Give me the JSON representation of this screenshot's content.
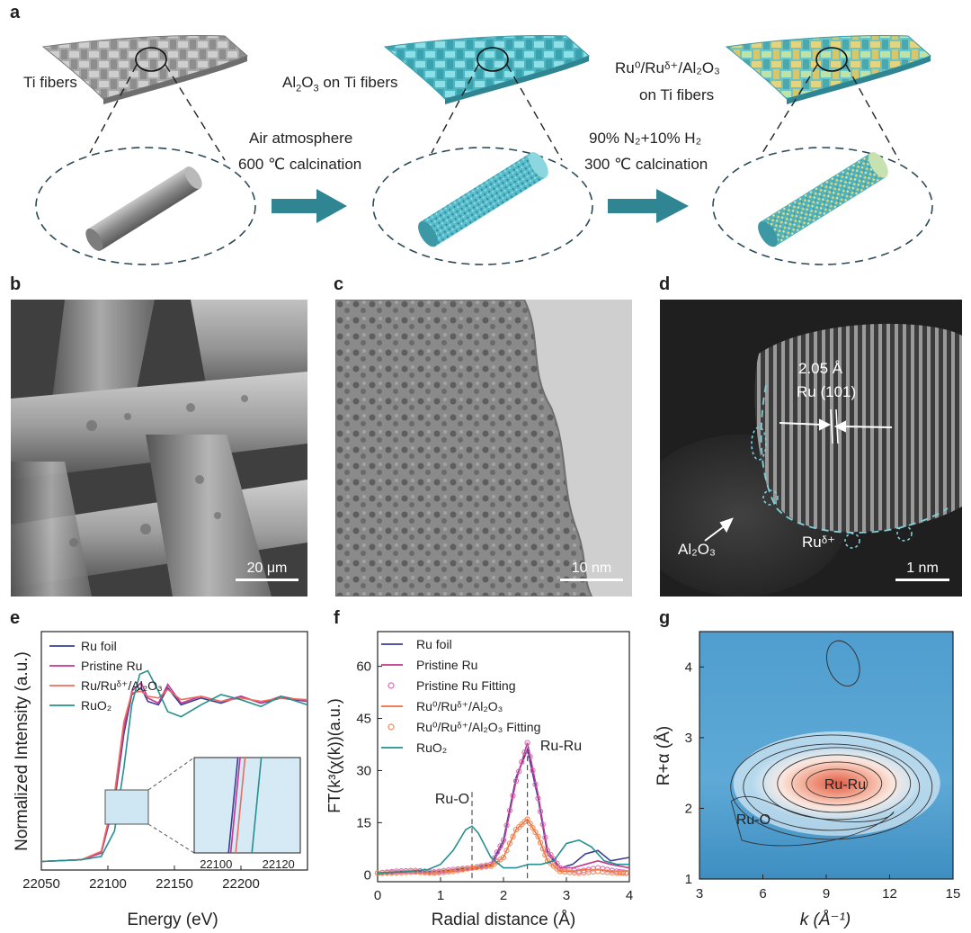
{
  "panels": {
    "a": "a",
    "b": "b",
    "c": "c",
    "d": "d",
    "e": "e",
    "f": "f",
    "g": "g"
  },
  "schematic": {
    "label1": "Ti fibers",
    "label2_pre": "Al",
    "label2_sub": "2",
    "label2_mid": "O",
    "label2_sub2": "3",
    "label2_post": " on Ti fibers",
    "label3_line1": "Ru⁰/Ruᵟ⁺/Al₂O₃",
    "label3_line2": "on Ti fibers",
    "step1_line1": "Air atmosphere",
    "step1_line2": "600 ℃ calcination",
    "step2_line1": "90% N₂+10% H₂",
    "step2_line2": "300 ℃ calcination",
    "colors": {
      "grey": "#9a9a9a",
      "cyan": "#5fc4cf",
      "arrow": "#2f8592",
      "yellow": "#e6d27a"
    }
  },
  "micrographs": {
    "b_scale": "20 μm",
    "c_scale": "10 nm",
    "d_scale": "1 nm",
    "d_spacing": "2.05 Å",
    "d_plane": "Ru (101)",
    "d_al2o3": "Al₂O₃",
    "d_ru": "Ruᵟ⁺"
  },
  "chart_data": [
    {
      "type": "line",
      "panel": "e",
      "xlabel": "Energy (eV)",
      "ylabel": "Normalized  Intensity (a.u.)",
      "xlim": [
        22050,
        22250
      ],
      "xticks": [
        22050,
        22100,
        22150,
        22200
      ],
      "inset_xticks": [
        22100,
        22120
      ],
      "legend": [
        "Ru foil",
        "Pristine Ru",
        "Ru/Ruᵟ⁺/Al₂O₃",
        "RuO₂"
      ],
      "series": [
        {
          "name": "Ru foil",
          "color": "#3a3f94",
          "x": [
            22050,
            22080,
            22095,
            22105,
            22112,
            22118,
            22125,
            22130,
            22138,
            22145,
            22155,
            22170,
            22185,
            22200,
            22215,
            22230,
            22250
          ],
          "y": [
            0.0,
            0.01,
            0.05,
            0.35,
            0.75,
            0.98,
            1.02,
            0.94,
            0.92,
            1.02,
            0.92,
            0.96,
            0.93,
            0.97,
            0.93,
            0.96,
            0.94
          ]
        },
        {
          "name": "Pristine Ru",
          "color": "#c2378d",
          "x": [
            22050,
            22080,
            22095,
            22105,
            22112,
            22118,
            22125,
            22130,
            22138,
            22145,
            22155,
            22170,
            22185,
            22200,
            22215,
            22230,
            22250
          ],
          "y": [
            0.0,
            0.01,
            0.05,
            0.37,
            0.78,
            1.0,
            1.05,
            0.96,
            0.93,
            1.04,
            0.93,
            0.97,
            0.94,
            0.97,
            0.93,
            0.97,
            0.94
          ]
        },
        {
          "name": "Ru/Ruᵟ⁺/Al₂O₃",
          "color": "#ef6b5d",
          "x": [
            22050,
            22080,
            22095,
            22105,
            22112,
            22118,
            22125,
            22130,
            22138,
            22145,
            22155,
            22170,
            22185,
            22200,
            22215,
            22230,
            22250
          ],
          "y": [
            0.0,
            0.01,
            0.06,
            0.4,
            0.82,
            0.99,
            1.0,
            0.97,
            0.96,
            1.01,
            0.95,
            0.97,
            0.94,
            0.96,
            0.94,
            0.96,
            0.95
          ]
        },
        {
          "name": "RuO₂",
          "color": "#25908f",
          "x": [
            22050,
            22080,
            22095,
            22105,
            22112,
            22118,
            22124,
            22130,
            22138,
            22145,
            22155,
            22170,
            22185,
            22200,
            22215,
            22230,
            22250
          ],
          "y": [
            0.0,
            0.01,
            0.03,
            0.18,
            0.55,
            0.92,
            1.1,
            1.12,
            1.0,
            0.88,
            0.85,
            0.92,
            0.98,
            0.95,
            0.91,
            0.97,
            0.92
          ]
        }
      ]
    },
    {
      "type": "line",
      "panel": "f",
      "xlabel": "Radial distance (Å)",
      "ylabel": "FT(k³(χ(k))(a.u.)",
      "xlim": [
        0,
        4
      ],
      "ylim": [
        -2,
        70
      ],
      "xticks": [
        0,
        1,
        2,
        3,
        4
      ],
      "yticks": [
        0,
        15,
        30,
        45,
        60
      ],
      "annotations": [
        "Ru-O",
        "Ru-Ru"
      ],
      "ref_lines_x": [
        1.5,
        2.38
      ],
      "legend": [
        "Ru foil",
        "Pristine Ru",
        "Pristine Ru Fitting",
        "Ru⁰/Ruᵟ⁺/Al₂O₃",
        "Ru⁰/Ruᵟ⁺/Al₂O₃  Fitting",
        "RuO₂"
      ],
      "series": [
        {
          "name": "Ru foil",
          "color": "#3a3f94",
          "x": [
            0,
            0.4,
            0.8,
            1.2,
            1.5,
            1.8,
            2.0,
            2.2,
            2.38,
            2.55,
            2.7,
            2.9,
            3.1,
            3.3,
            3.5,
            3.7,
            4.0
          ],
          "y": [
            0.5,
            1.0,
            0.8,
            1.5,
            2.0,
            3.0,
            10,
            28,
            36,
            22,
            6,
            2,
            3,
            6,
            7,
            4,
            5
          ]
        },
        {
          "name": "Pristine Ru",
          "color": "#c2378d",
          "x": [
            0,
            0.4,
            0.8,
            1.2,
            1.5,
            1.8,
            2.0,
            2.2,
            2.38,
            2.55,
            2.7,
            2.9,
            3.1,
            3.3,
            3.5,
            3.7,
            4.0
          ],
          "y": [
            0.3,
            0.6,
            0.5,
            1.0,
            1.5,
            2.5,
            9,
            27,
            38,
            23,
            7,
            2,
            2,
            3,
            4,
            3,
            2
          ]
        },
        {
          "name": "Pristine Ru Fitting",
          "color": "#d86bb4",
          "x": [
            0,
            0.3,
            0.6,
            0.9,
            1.2,
            1.5,
            1.8,
            2.0,
            2.2,
            2.38,
            2.55,
            2.7,
            2.9,
            3.2,
            3.5,
            3.8,
            4.0
          ],
          "y": [
            0.5,
            1.0,
            1.2,
            0.8,
            1.5,
            2.0,
            3.0,
            10,
            27,
            38,
            22,
            7,
            2,
            1,
            2,
            1,
            0.5
          ]
        },
        {
          "name": "Ru⁰/Ruᵟ⁺/Al₂O₃",
          "color": "#ef6b3d",
          "x": [
            0,
            0.4,
            0.8,
            1.2,
            1.5,
            1.8,
            2.0,
            2.2,
            2.38,
            2.55,
            2.7,
            2.9,
            3.1,
            3.3,
            3.5,
            3.7,
            4.0
          ],
          "y": [
            0.5,
            0.8,
            0.6,
            1.0,
            2.0,
            2.5,
            5,
            13,
            16,
            11,
            4,
            1,
            1,
            1.5,
            1.5,
            1,
            1
          ]
        },
        {
          "name": "Ru⁰/Ruᵟ⁺/Al₂O₃  Fitting",
          "color": "#f08a55",
          "x": [
            0,
            0.3,
            0.6,
            0.9,
            1.2,
            1.5,
            1.8,
            2.0,
            2.2,
            2.38,
            2.55,
            2.7,
            2.9,
            3.2,
            3.5,
            3.8,
            4.0
          ],
          "y": [
            0.5,
            0.6,
            0.8,
            0.5,
            1.0,
            2.0,
            2.5,
            5,
            13,
            16,
            11,
            4,
            1,
            0.5,
            1,
            0.5,
            0.5
          ]
        },
        {
          "name": "RuO₂",
          "color": "#25908f",
          "x": [
            0,
            0.4,
            0.8,
            1.0,
            1.2,
            1.4,
            1.5,
            1.6,
            1.8,
            2.0,
            2.2,
            2.4,
            2.6,
            2.8,
            3.0,
            3.2,
            3.4,
            3.6,
            3.8,
            4.0
          ],
          "y": [
            0.5,
            0.8,
            1.5,
            3,
            7,
            13,
            14,
            12,
            5,
            2,
            2,
            3,
            3,
            4,
            9,
            10,
            8,
            4,
            3,
            3
          ]
        }
      ]
    },
    {
      "type": "heatmap",
      "panel": "g",
      "xlabel": "k (Å⁻¹)",
      "ylabel": "R+α (Å)",
      "xlim": [
        3,
        15
      ],
      "ylim": [
        1,
        4.5
      ],
      "xticks": [
        3,
        6,
        9,
        12,
        15
      ],
      "yticks": [
        1,
        2,
        3,
        4
      ],
      "annotations": [
        "Ru-Ru",
        "Ru-O"
      ],
      "peak": {
        "k": 9.5,
        "r": 2.35
      }
    }
  ]
}
